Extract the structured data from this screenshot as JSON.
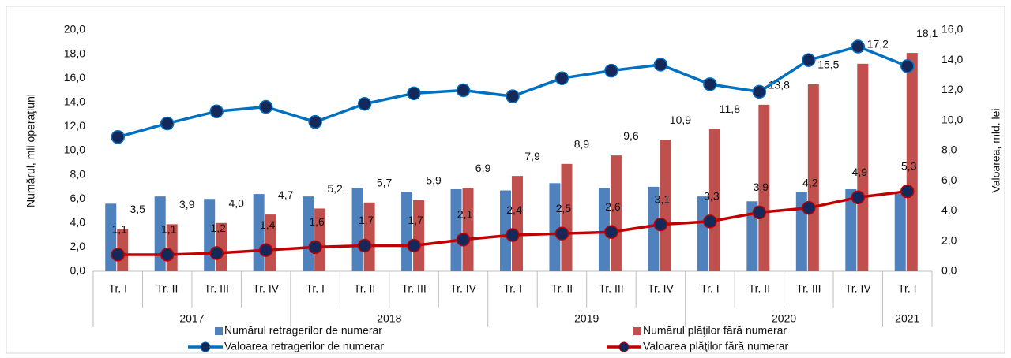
{
  "chart_data": {
    "type": "combo",
    "groups": [
      {
        "name": "2017",
        "categories": [
          "Tr. I",
          "Tr. II",
          "Tr. III",
          "Tr. IV"
        ]
      },
      {
        "name": "2018",
        "categories": [
          "Tr. I",
          "Tr. II",
          "Tr. III",
          "Tr. IV"
        ]
      },
      {
        "name": "2019",
        "categories": [
          "Tr. I",
          "Tr. II",
          "Tr. III",
          "Tr. IV"
        ]
      },
      {
        "name": "2020",
        "categories": [
          "Tr. I",
          "Tr. II",
          "Tr. III",
          "Tr. IV"
        ]
      },
      {
        "name": "2021",
        "categories": [
          "Tr. I"
        ]
      }
    ],
    "ylabel": "Numărul, mii operaţiuni",
    "y2label": "Valoarea, mld. lei",
    "ylim": [
      0,
      20
    ],
    "yticks": [
      {
        "value": 0,
        "label": "0,0"
      },
      {
        "value": 2,
        "label": "2,0"
      },
      {
        "value": 4,
        "label": "4,0"
      },
      {
        "value": 6,
        "label": "6,0"
      },
      {
        "value": 8,
        "label": "8,0"
      },
      {
        "value": 10,
        "label": "10,0"
      },
      {
        "value": 12,
        "label": "12,0"
      },
      {
        "value": 14,
        "label": "14,0"
      },
      {
        "value": 16,
        "label": "16,0"
      },
      {
        "value": 18,
        "label": "18,0"
      },
      {
        "value": 20,
        "label": "20,0"
      }
    ],
    "y2lim": [
      0,
      16
    ],
    "y2ticks": [
      {
        "value": 0,
        "label": "0,0"
      },
      {
        "value": 2,
        "label": "2,0"
      },
      {
        "value": 4,
        "label": "4,0"
      },
      {
        "value": 6,
        "label": "6,0"
      },
      {
        "value": 8,
        "label": "8,0"
      },
      {
        "value": 10,
        "label": "10,0"
      },
      {
        "value": 12,
        "label": "12,0"
      },
      {
        "value": 14,
        "label": "14,0"
      },
      {
        "value": 16,
        "label": "16,0"
      }
    ],
    "grid": false,
    "series": [
      {
        "name": "Numărul retragerilor de numerar",
        "type": "bar",
        "axis": "y",
        "color": "#4f81bd",
        "values": [
          5.6,
          6.2,
          6.0,
          6.4,
          6.2,
          6.9,
          6.6,
          6.8,
          6.7,
          7.3,
          6.9,
          7.0,
          6.2,
          5.8,
          6.6,
          6.8,
          6.4
        ]
      },
      {
        "name": "Numărul plăţilor fără numerar",
        "type": "bar",
        "axis": "y",
        "color": "#c0504d",
        "values": [
          3.5,
          3.9,
          4.0,
          4.7,
          5.2,
          5.7,
          5.9,
          6.9,
          7.9,
          8.9,
          9.6,
          10.9,
          11.8,
          13.8,
          15.5,
          17.2,
          18.1
        ],
        "value_labels": [
          "3,5",
          "3,9",
          "4,0",
          "4,7",
          "5,2",
          "5,7",
          "5,9",
          "6,9",
          "7,9",
          "8,9",
          "9,6",
          "10,9",
          "11,8",
          "13,8",
          "15,5",
          "17,2",
          "18,1"
        ]
      },
      {
        "name": "Valoarea retragerilor de numerar",
        "type": "line",
        "axis": "y2",
        "color": "#0070c0",
        "marker_color": "#14285a",
        "values": [
          8.9,
          9.8,
          10.6,
          10.9,
          9.9,
          11.1,
          11.8,
          12.0,
          11.6,
          12.8,
          13.3,
          13.7,
          12.4,
          11.9,
          14.0,
          14.9,
          13.6
        ]
      },
      {
        "name": "Valoarea plăţilor fără numerar",
        "type": "line",
        "axis": "y2",
        "color": "#c00000",
        "marker_color": "#14285a",
        "values": [
          1.1,
          1.1,
          1.2,
          1.4,
          1.6,
          1.7,
          1.7,
          2.1,
          2.4,
          2.5,
          2.6,
          3.1,
          3.3,
          3.9,
          4.2,
          4.9,
          5.3
        ],
        "value_labels": [
          "1,1",
          "1,1",
          "1,2",
          "1,4",
          "1,6",
          "1,7",
          "1,7",
          "2,1",
          "2,4",
          "2,5",
          "2,6",
          "3,1",
          "3,3",
          "3,9",
          "4,2",
          "4,9",
          "5,3"
        ]
      }
    ]
  }
}
